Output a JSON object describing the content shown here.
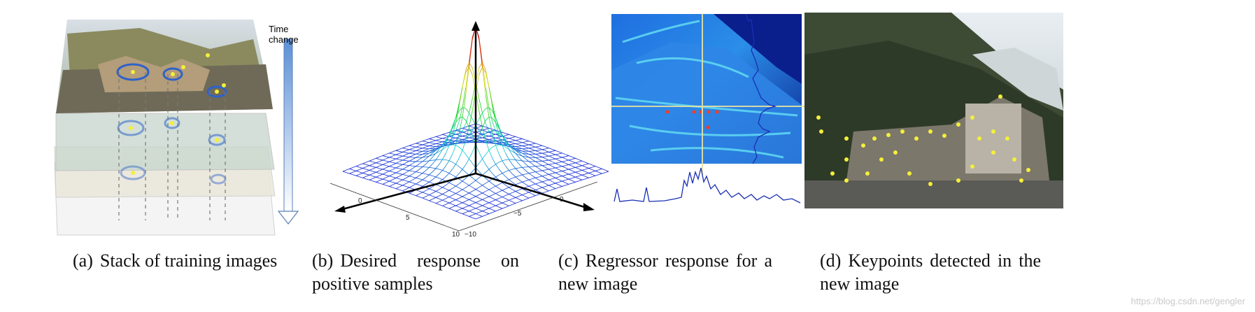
{
  "figure": {
    "panels": [
      {
        "tag": "(a)",
        "caption": "Stack of training images"
      },
      {
        "tag": "(b)",
        "caption": "Desired response on positive samples"
      },
      {
        "tag": "(c)",
        "caption": "Regressor response for a new image"
      },
      {
        "tag": "(d)",
        "caption": "Keypoints detected in the new image"
      }
    ],
    "panel_a": {
      "arrow_label": "Time change"
    },
    "panel_b": {
      "left_axis_ticks": [
        "0",
        "5",
        "10"
      ],
      "right_axis_ticks": [
        "−10",
        "−5",
        "0"
      ]
    }
  },
  "watermark": "https://blog.csdn.net/gengler",
  "colors": {
    "heatmap_dark": "#0a1e8c",
    "heatmap_mid": "#1f6fe0",
    "heatmap_light": "#5fd6f2",
    "keypoint": "#f4ef3a",
    "profile_line": "#1a2fb4",
    "ellipse": "#2e62c8"
  }
}
